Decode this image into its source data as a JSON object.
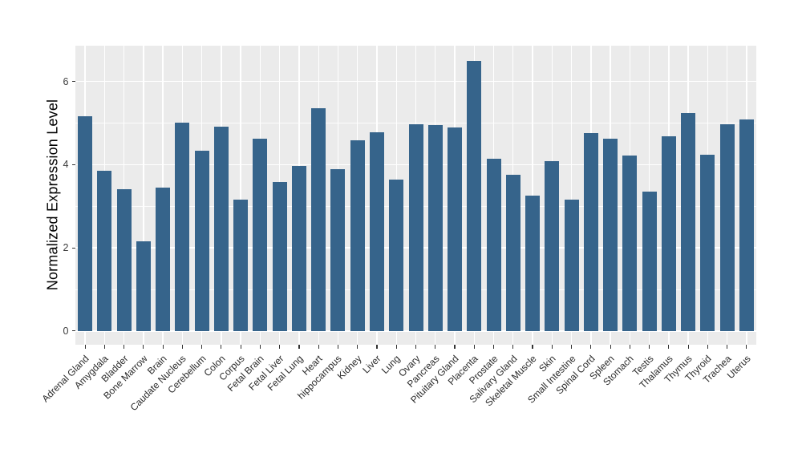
{
  "chart_data": {
    "type": "bar",
    "title": "",
    "xlabel": "",
    "ylabel": "Normalized Expression Level",
    "categories": [
      "Adrenal Gland",
      "Amygdala",
      "Bladder",
      "Bone Marrow",
      "Brain",
      "Caudate Nucleus",
      "Cerebellum",
      "Colon",
      "Corpus",
      "Fetal Brain",
      "Fetal Liver",
      "Fetal Lung",
      "Heart",
      "hippocampus",
      "Kidney",
      "Liver",
      "Lung",
      "Ovary",
      "Pancreas",
      "Pituitary Gland",
      "Placenta",
      "Prostate",
      "Salivary Gland",
      "Skeletal Muscle",
      "Skin",
      "Small Intestine",
      "Spinal Cord",
      "Spleen",
      "Stomach",
      "Testis",
      "Thalamus",
      "Thymus",
      "Thyroid",
      "Trachea",
      "Uterus"
    ],
    "values": [
      5.16,
      3.86,
      3.4,
      2.16,
      3.44,
      5.01,
      4.33,
      4.92,
      3.15,
      4.63,
      3.59,
      3.96,
      5.35,
      3.89,
      4.59,
      4.78,
      3.65,
      4.98,
      4.95,
      4.89,
      6.5,
      4.14,
      3.76,
      3.26,
      4.08,
      3.15,
      4.76,
      4.63,
      4.21,
      3.36,
      4.68,
      5.24,
      4.24,
      4.97,
      5.08
    ],
    "y_ticks": [
      0,
      2,
      4,
      6
    ],
    "y_minor_ticks": [
      1,
      3,
      5
    ],
    "ylim": [
      -0.33,
      6.86
    ],
    "grid": true,
    "legend_position": "none",
    "colors": {
      "bar_fill": "#36648B",
      "panel_background": "#EBEBEB",
      "grid_major": "#FFFFFF",
      "grid_minor": "#FFFFFF",
      "axis_text": "#3c3c3c",
      "axis_title": "#000000",
      "page_background": "#FFFFFF"
    }
  }
}
